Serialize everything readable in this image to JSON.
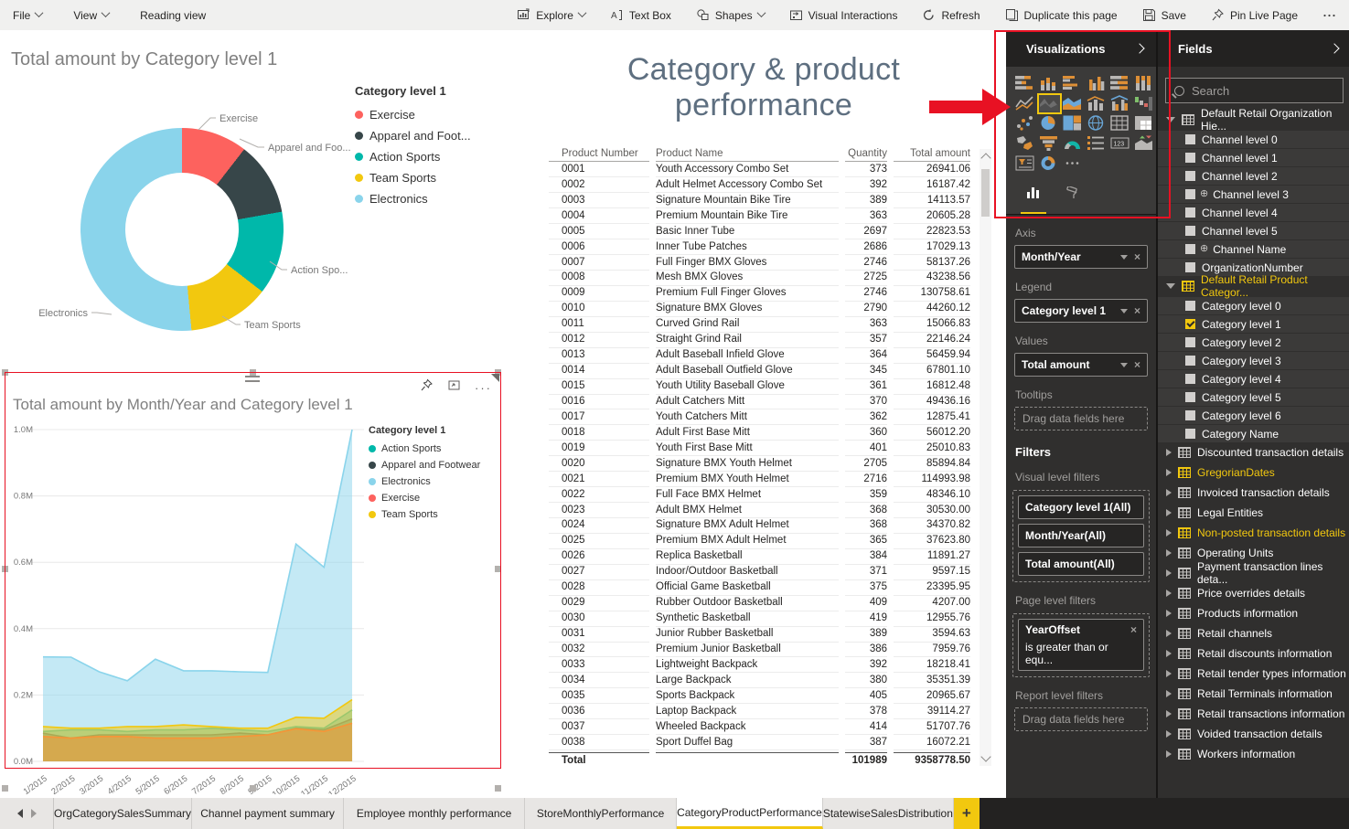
{
  "toolbar": {
    "left": [
      {
        "id": "file",
        "label": "File",
        "chevron": true
      },
      {
        "id": "view",
        "label": "View",
        "chevron": true
      },
      {
        "id": "reading-view",
        "label": "Reading view"
      }
    ],
    "right": [
      {
        "id": "explore",
        "label": "Explore",
        "chevron": true,
        "icon": "explore-icon"
      },
      {
        "id": "text-box",
        "label": "Text Box",
        "icon": "text-box-icon"
      },
      {
        "id": "shapes",
        "label": "Shapes",
        "chevron": true,
        "icon": "shapes-icon"
      },
      {
        "id": "visual-interactions",
        "label": "Visual Interactions",
        "icon": "visual-interactions-icon"
      },
      {
        "id": "refresh",
        "label": "Refresh",
        "icon": "refresh-icon"
      },
      {
        "id": "duplicate-page",
        "label": "Duplicate this page",
        "icon": "duplicate-icon"
      },
      {
        "id": "save",
        "label": "Save",
        "icon": "save-icon"
      },
      {
        "id": "pin-live-page",
        "label": "Pin Live Page",
        "icon": "pin-icon"
      },
      {
        "id": "more-options",
        "label": "",
        "icon": "ellipsis-icon"
      }
    ]
  },
  "page_title": "Category & product performance",
  "chart_data": [
    {
      "id": "donut",
      "type": "pie",
      "title": "Total amount by Category level 1",
      "legend_title": "Category level 1",
      "legend_position": "right",
      "categories": [
        "Exercise",
        "Apparel and Footwear",
        "Action Sports",
        "Team Sports",
        "Electronics"
      ],
      "legend_labels": [
        "Exercise",
        "Apparel and Foot...",
        "Action Sports",
        "Team Sports",
        "Electronics"
      ],
      "callout_labels": [
        "Exercise",
        "Apparel and Foo...",
        "Action Spo...",
        "Team Sports",
        "Electronics"
      ],
      "values_pct": [
        10.5,
        11.7,
        13.3,
        13.0,
        51.5
      ],
      "colors": [
        "#FD625E",
        "#374649",
        "#00B8AA",
        "#F2C80F",
        "#8AD4EB"
      ]
    },
    {
      "id": "area",
      "type": "area",
      "title": "Total amount by Month/Year and Category level 1",
      "legend_title": "Category level 1",
      "legend_position": "right",
      "x": [
        "1/2015",
        "2/2015",
        "3/2015",
        "4/2015",
        "5/2015",
        "6/2015",
        "7/2015",
        "8/2015",
        "9/2015",
        "10/2015",
        "11/2015",
        "12/2015"
      ],
      "y_ticks": [
        "1.0M",
        "0.8M",
        "0.6M",
        "0.4M",
        "0.2M",
        "0.0M"
      ],
      "ylim": [
        0,
        1000000
      ],
      "grid": true,
      "series": [
        {
          "name": "Action Sports",
          "color": "#00B8AA",
          "values": [
            90000,
            95000,
            95000,
            90000,
            95000,
            95000,
            100000,
            95000,
            90000,
            105000,
            100000,
            155000
          ]
        },
        {
          "name": "Apparel and Footwear",
          "color": "#374649",
          "values": [
            85000,
            70000,
            80000,
            80000,
            80000,
            80000,
            80000,
            85000,
            80000,
            100000,
            95000,
            128000
          ]
        },
        {
          "name": "Electronics",
          "color": "#8AD4EB",
          "values": [
            315000,
            314000,
            270000,
            243000,
            308000,
            273000,
            273000,
            270000,
            268000,
            655000,
            585000,
            1000000
          ]
        },
        {
          "name": "Exercise",
          "color": "#FD625E",
          "values": [
            75000,
            70000,
            75000,
            75000,
            70000,
            70000,
            70000,
            75000,
            80000,
            98000,
            90000,
            115000
          ]
        },
        {
          "name": "Team Sports",
          "color": "#F2C80F",
          "values": [
            105000,
            100000,
            100000,
            105000,
            105000,
            110000,
            105000,
            100000,
            100000,
            133000,
            130000,
            186000
          ]
        }
      ]
    }
  ],
  "table": {
    "columns": [
      "Product Number",
      "Product Name",
      "Quantity",
      "Total amount"
    ],
    "rows": [
      [
        "0001",
        "Youth Accessory Combo Set",
        "373",
        "26941.06"
      ],
      [
        "0002",
        "Adult Helmet Accessory Combo Set",
        "392",
        "16187.42"
      ],
      [
        "0003",
        "Signature Mountain Bike Tire",
        "389",
        "14113.57"
      ],
      [
        "0004",
        "Premium Mountain Bike Tire",
        "363",
        "20605.28"
      ],
      [
        "0005",
        "Basic Inner Tube",
        "2697",
        "22823.53"
      ],
      [
        "0006",
        "Inner Tube Patches",
        "2686",
        "17029.13"
      ],
      [
        "0007",
        "Full Finger BMX Gloves",
        "2746",
        "58137.26"
      ],
      [
        "0008",
        "Mesh BMX Gloves",
        "2725",
        "43238.56"
      ],
      [
        "0009",
        "Premium Full Finger Gloves",
        "2746",
        "130758.61"
      ],
      [
        "0010",
        "Signature BMX Gloves",
        "2790",
        "44260.12"
      ],
      [
        "0011",
        "Curved Grind Rail",
        "363",
        "15066.83"
      ],
      [
        "0012",
        "Straight Grind Rail",
        "357",
        "22146.24"
      ],
      [
        "0013",
        "Adult Baseball Infield Glove",
        "364",
        "56459.94"
      ],
      [
        "0014",
        "Adult Baseball Outfield Glove",
        "345",
        "67801.10"
      ],
      [
        "0015",
        "Youth Utility Baseball Glove",
        "361",
        "16812.48"
      ],
      [
        "0016",
        "Adult Catchers Mitt",
        "370",
        "49436.16"
      ],
      [
        "0017",
        "Youth Catchers Mitt",
        "362",
        "12875.41"
      ],
      [
        "0018",
        "Adult First Base Mitt",
        "360",
        "56012.20"
      ],
      [
        "0019",
        "Youth First Base Mitt",
        "401",
        "25010.83"
      ],
      [
        "0020",
        "Signature BMX Youth Helmet",
        "2705",
        "85894.84"
      ],
      [
        "0021",
        "Premium BMX Youth Helmet",
        "2716",
        "114993.98"
      ],
      [
        "0022",
        "Full Face BMX Helmet",
        "359",
        "48346.10"
      ],
      [
        "0023",
        "Adult BMX Helmet",
        "368",
        "30530.00"
      ],
      [
        "0024",
        "Signature BMX Adult Helmet",
        "368",
        "34370.82"
      ],
      [
        "0025",
        "Premium BMX Adult Helmet",
        "365",
        "37623.80"
      ],
      [
        "0026",
        "Replica Basketball",
        "384",
        "11891.27"
      ],
      [
        "0027",
        "Indoor/Outdoor Basketball",
        "371",
        "9597.15"
      ],
      [
        "0028",
        "Official Game Basketball",
        "375",
        "23395.95"
      ],
      [
        "0029",
        "Rubber Outdoor Basketball",
        "409",
        "4207.00"
      ],
      [
        "0030",
        "Synthetic Basketball",
        "419",
        "12955.76"
      ],
      [
        "0031",
        "Junior Rubber Basketball",
        "389",
        "3594.63"
      ],
      [
        "0032",
        "Premium Junior Basketball",
        "386",
        "7959.76"
      ],
      [
        "0033",
        "Lightweight Backpack",
        "392",
        "18218.41"
      ],
      [
        "0034",
        "Large Backpack",
        "380",
        "35351.39"
      ],
      [
        "0035",
        "Sports Backpack",
        "405",
        "20965.67"
      ],
      [
        "0036",
        "Laptop Backpack",
        "378",
        "39114.27"
      ],
      [
        "0037",
        "Wheeled Backpack",
        "414",
        "51707.76"
      ],
      [
        "0038",
        "Sport Duffel Bag",
        "387",
        "16072.21"
      ]
    ],
    "total": {
      "label": "Total",
      "quantity": "101989",
      "total_amount": "9358778.50"
    }
  },
  "visualizations_panel": {
    "title": "Visualizations",
    "icons": [
      {
        "name": "stacked-bar-chart-icon"
      },
      {
        "name": "stacked-column-chart-icon"
      },
      {
        "name": "clustered-bar-chart-icon"
      },
      {
        "name": "clustered-column-chart-icon"
      },
      {
        "name": "100-stacked-bar-chart-icon"
      },
      {
        "name": "100-stacked-column-chart-icon"
      },
      {
        "name": "line-chart-icon"
      },
      {
        "name": "area-chart-icon",
        "selected": true
      },
      {
        "name": "stacked-area-chart-icon"
      },
      {
        "name": "line-stacked-column-chart-icon"
      },
      {
        "name": "line-clustered-column-chart-icon"
      },
      {
        "name": "waterfall-chart-icon"
      },
      {
        "name": "scatter-chart-icon"
      },
      {
        "name": "pie-chart-icon"
      },
      {
        "name": "treemap-icon"
      },
      {
        "name": "map-icon"
      },
      {
        "name": "table-icon"
      },
      {
        "name": "matrix-icon"
      },
      {
        "name": "filled-map-icon"
      },
      {
        "name": "funnel-icon"
      },
      {
        "name": "gauge-icon"
      },
      {
        "name": "multi-row-card-icon"
      },
      {
        "name": "card-icon"
      },
      {
        "name": "kpi-icon"
      },
      {
        "name": "slicer-icon"
      },
      {
        "name": "donut-chart-icon"
      },
      {
        "name": "more-visuals-icon"
      }
    ],
    "wells": [
      {
        "label": "Axis",
        "pill": "Month/Year"
      },
      {
        "label": "Legend",
        "pill": "Category level 1"
      },
      {
        "label": "Values",
        "pill": "Total amount"
      },
      {
        "label": "Tooltips",
        "placeholder": "Drag data fields here"
      }
    ],
    "filters": {
      "title": "Filters",
      "visual_level_label": "Visual level filters",
      "visual_level_pills": [
        "Category level 1(All)",
        "Month/Year(All)",
        "Total amount(All)"
      ],
      "page_level_label": "Page level filters",
      "page_level_filter": {
        "name": "YearOffset",
        "condition": "is greater than or equ..."
      },
      "report_level_label": "Report level filters",
      "report_level_placeholder": "Drag data fields here"
    }
  },
  "fields_panel": {
    "title": "Fields",
    "search_placeholder": "Search",
    "tree": [
      {
        "name": "Default Retail Organization Hie...",
        "expanded": true,
        "active": false,
        "children": [
          {
            "name": "Channel level 0"
          },
          {
            "name": "Channel level 1"
          },
          {
            "name": "Channel level 2"
          },
          {
            "name": "Channel level 3",
            "geo": true
          },
          {
            "name": "Channel level 4"
          },
          {
            "name": "Channel level 5"
          },
          {
            "name": "Channel Name",
            "geo": true
          },
          {
            "name": "OrganizationNumber"
          }
        ]
      },
      {
        "name": "Default Retail Product Categor...",
        "expanded": true,
        "active": true,
        "children": [
          {
            "name": "Category level 0"
          },
          {
            "name": "Category level 1",
            "checked": true
          },
          {
            "name": "Category level 2"
          },
          {
            "name": "Category level 3"
          },
          {
            "name": "Category level 4"
          },
          {
            "name": "Category level 5"
          },
          {
            "name": "Category level 6"
          },
          {
            "name": "Category Name"
          }
        ]
      },
      {
        "name": "Discounted transaction details"
      },
      {
        "name": "GregorianDates",
        "active": true
      },
      {
        "name": "Invoiced transaction details"
      },
      {
        "name": "Legal Entities"
      },
      {
        "name": "Non-posted transaction details",
        "active": true
      },
      {
        "name": "Operating Units"
      },
      {
        "name": "Payment transaction lines deta..."
      },
      {
        "name": "Price overrides details"
      },
      {
        "name": "Products information"
      },
      {
        "name": "Retail channels"
      },
      {
        "name": "Retail discounts information"
      },
      {
        "name": "Retail tender types information"
      },
      {
        "name": "Retail Terminals information"
      },
      {
        "name": "Retail transactions information"
      },
      {
        "name": "Voided transaction details"
      },
      {
        "name": "Workers information"
      }
    ]
  },
  "page_tabs": {
    "items": [
      "OrgCategorySalesSummary",
      "Channel payment summary",
      "Employee monthly performance",
      "StoreMonthlyPerformance",
      "CategoryProductPerformance",
      "StatewiseSalesDistribution"
    ],
    "active": "CategoryProductPerformance",
    "add_label": "+"
  },
  "colors": {
    "accent": "#F2C80F",
    "annotation": "#E81123",
    "panel_bg": "#302F2E"
  }
}
